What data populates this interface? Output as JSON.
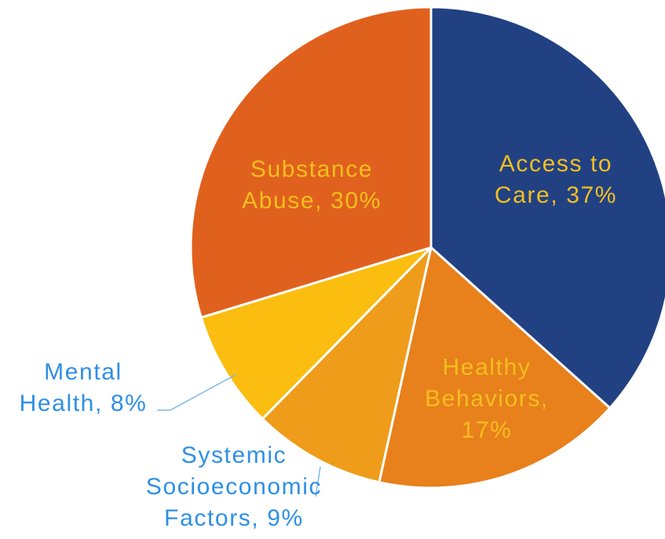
{
  "chart_data": {
    "type": "pie",
    "slices": [
      {
        "name": "Access to Care",
        "value": 37,
        "percent_label": "37%",
        "label_lines": [
          "Access to",
          "Care, 37%"
        ],
        "color": "#214183",
        "label_color": "#F5BF1F"
      },
      {
        "name": "Healthy Behaviors",
        "value": 17,
        "percent_label": "17%",
        "label_lines": [
          "Healthy",
          "Behaviors,",
          "17%"
        ],
        "color": "#E8801B",
        "label_color": "#F5BF1F"
      },
      {
        "name": "Systemic Socioeconomic Factors",
        "value": 9,
        "percent_label": "9%",
        "label_lines": [
          "Systemic",
          "Socioeconomic",
          "Factors, 9%"
        ],
        "color": "#EE9C1A",
        "label_color": "#2E8FE6"
      },
      {
        "name": "Mental Health",
        "value": 8,
        "percent_label": "8%",
        "label_lines": [
          "Mental",
          "Health, 8%"
        ],
        "color": "#FBBD0F",
        "label_color": "#2E8FE6"
      },
      {
        "name": "Substance Abuse",
        "value": 30,
        "percent_label": "30%",
        "label_lines": [
          "Substance",
          "Abuse, 30%"
        ],
        "color": "#E0611D",
        "label_color": "#F5BF1F"
      }
    ],
    "start_angle_deg": 0,
    "direction": "clockwise",
    "legend": "none",
    "title": "",
    "leader_line_color": "#7FB8E8"
  }
}
